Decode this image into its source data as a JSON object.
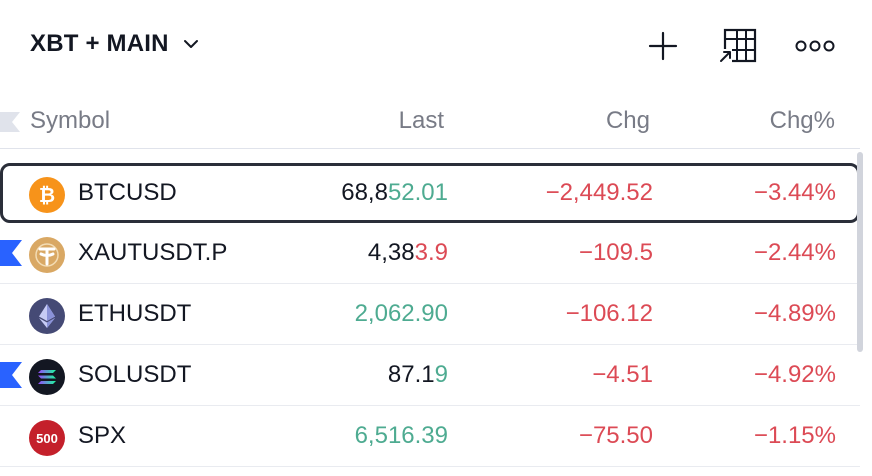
{
  "header": {
    "list_name": "XBT + MAIN",
    "icons": [
      "chevron-down-icon",
      "plus-icon",
      "table-layout-icon",
      "more-dots-icon"
    ]
  },
  "columns": {
    "symbol": "Symbol",
    "last": "Last",
    "chg": "Chg",
    "chg_pct": "Chg%"
  },
  "colors": {
    "up": "#4eab91",
    "down": "#dc4a55",
    "text": "#131722",
    "muted": "#787b86",
    "flag": "#2962ff"
  },
  "rows": [
    {
      "symbol": "BTCUSD",
      "last_static": "68,8",
      "last_changed": "52.01",
      "tick": "up",
      "chg": "−2,449.52",
      "chg_pct": "−3.44%",
      "logo": "bitcoin-logo-icon",
      "selected": true,
      "flagged": false
    },
    {
      "symbol": "XAUTUSDT.P",
      "last_static": "4,38",
      "last_changed": "3.9",
      "tick": "down",
      "chg": "−109.5",
      "chg_pct": "−2.44%",
      "logo": "tether-gold-logo-icon",
      "selected": false,
      "flagged": true
    },
    {
      "symbol": "ETHUSDT",
      "last_static": "",
      "last_changed": "2,062.90",
      "tick": "up",
      "chg": "−106.12",
      "chg_pct": "−4.89%",
      "logo": "ethereum-logo-icon",
      "selected": false,
      "flagged": false
    },
    {
      "symbol": "SOLUSDT",
      "last_static": "87.1",
      "last_changed": "9",
      "tick": "up",
      "chg": "−4.51",
      "chg_pct": "−4.92%",
      "logo": "solana-logo-icon",
      "selected": false,
      "flagged": true
    },
    {
      "symbol": "SPX",
      "last_static": "",
      "last_changed": "6,516.39",
      "tick": "up",
      "chg": "−75.50",
      "chg_pct": "−1.15%",
      "logo": "spx-500-logo-icon",
      "logo_text": "500",
      "selected": false,
      "flagged": false
    }
  ]
}
